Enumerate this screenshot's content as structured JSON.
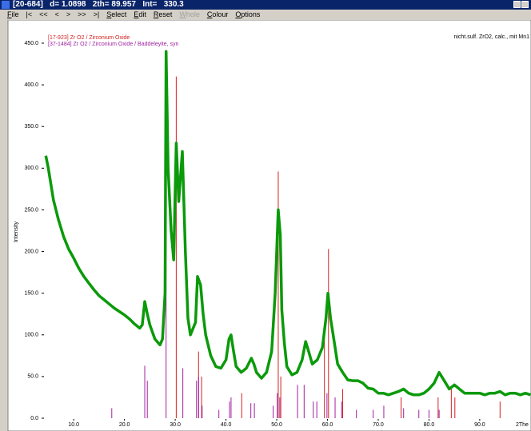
{
  "window": {
    "title": "[20-684]   d= 1.0898   2th= 89.957   Int=   330.3",
    "menu": [
      {
        "label": "File"
      },
      {
        "label": "|<"
      },
      {
        "label": "<<"
      },
      {
        "label": "<"
      },
      {
        "label": ">"
      },
      {
        "label": ">>"
      },
      {
        "label": ">|"
      },
      {
        "label": "Select"
      },
      {
        "label": "Edit"
      },
      {
        "label": "Reset"
      },
      {
        "label": "Whole",
        "enabled": false
      },
      {
        "label": "Colour"
      },
      {
        "label": "Options"
      }
    ]
  },
  "chart_data": {
    "type": "line",
    "sample": "nicht.sulf. ZrO2, calc., mit Mn1",
    "ylabel": "Intensity",
    "xlabel": "2The",
    "xlim": [
      4.3,
      100.1
    ],
    "ylim": [
      0,
      473
    ],
    "xticks": [
      {
        "value": 10,
        "label": "10.0"
      },
      {
        "value": 20,
        "label": "20.0"
      },
      {
        "value": 30,
        "label": "30.0"
      },
      {
        "value": 40,
        "label": "40.0"
      },
      {
        "value": 50,
        "label": "50.0"
      },
      {
        "value": 60,
        "label": "60.0"
      },
      {
        "value": 70,
        "label": "70.0"
      },
      {
        "value": 80,
        "label": "80.0"
      },
      {
        "value": 90,
        "label": "90.0"
      }
    ],
    "yticks": [
      {
        "value": 0,
        "label": "0.0"
      },
      {
        "value": 50,
        "label": "50.0"
      },
      {
        "value": 100,
        "label": "100.0"
      },
      {
        "value": 150,
        "label": "150.0"
      },
      {
        "value": 200,
        "label": "200.0"
      },
      {
        "value": 250,
        "label": "250.0"
      },
      {
        "value": 300,
        "label": "300.0"
      },
      {
        "value": 350,
        "label": "350.0"
      },
      {
        "value": 400,
        "label": "400.0"
      },
      {
        "value": 450,
        "label": "450.0"
      }
    ],
    "color": "#0a9a0a",
    "x": [
      4.5,
      5,
      6,
      7,
      8,
      9,
      10,
      11,
      12,
      13,
      14,
      15,
      16,
      17,
      18,
      19,
      20,
      21,
      22,
      23,
      23.5,
      24,
      24.5,
      25,
      26,
      27,
      27.5,
      28,
      28.2,
      28.6,
      29.2,
      29.7,
      30.2,
      30.7,
      31.4,
      32,
      32.5,
      33,
      34,
      34.4,
      35,
      35.5,
      36,
      37,
      38,
      39,
      40,
      40.6,
      41,
      41.5,
      42,
      43,
      44,
      45,
      45.5,
      46,
      47,
      48,
      49,
      49.7,
      50.3,
      50.7,
      51,
      51.5,
      52,
      53,
      54,
      55,
      55.7,
      56.3,
      57,
      58,
      59,
      59.7,
      60.1,
      60.6,
      61,
      62,
      63,
      64,
      65,
      66,
      67,
      68,
      69,
      70,
      71,
      72,
      73,
      74,
      75,
      76,
      77,
      78,
      79,
      80,
      81,
      82,
      83,
      84,
      85,
      86,
      87,
      88,
      89,
      90,
      91,
      92,
      93,
      94,
      95,
      96,
      97,
      98,
      99,
      100
    ],
    "values": [
      315,
      300,
      262,
      238,
      218,
      203,
      192,
      180,
      170,
      162,
      154,
      147,
      142,
      137,
      132,
      128,
      124,
      119,
      113,
      108,
      112,
      140,
      125,
      112,
      95,
      88,
      95,
      150,
      440,
      300,
      225,
      190,
      330,
      260,
      320,
      200,
      120,
      100,
      115,
      170,
      160,
      125,
      100,
      75,
      62,
      60,
      70,
      95,
      100,
      80,
      62,
      55,
      60,
      72,
      65,
      55,
      48,
      55,
      80,
      150,
      250,
      220,
      130,
      90,
      62,
      52,
      55,
      70,
      92,
      80,
      65,
      70,
      85,
      120,
      150,
      120,
      105,
      65,
      55,
      46,
      45,
      45,
      42,
      36,
      35,
      30,
      30,
      28,
      30,
      32,
      35,
      30,
      28,
      28,
      30,
      35,
      42,
      55,
      45,
      35,
      40,
      35,
      30,
      30,
      30,
      30,
      28,
      30,
      30,
      32,
      28,
      30,
      30,
      28,
      30,
      28
    ],
    "references": [
      {
        "name": "[17-923]  Zr O2 / Zirconium Oxide",
        "color": "#d42020",
        "positions": [
          30.2,
          34.6,
          35.2,
          43.1,
          50.3,
          50.8,
          59.4,
          60.2,
          63.0,
          74.5,
          81.8,
          84.4,
          85.1,
          94.0
        ],
        "intensities": [
          410,
          80,
          50,
          30,
          296,
          50,
          110,
          203,
          35,
          25,
          25,
          35,
          25,
          20
        ]
      },
      {
        "name": "[37-1484]  Zr O2 / Zirconium Oxide / Baddeleyite, syn",
        "color": "#a020a0",
        "positions": [
          17.5,
          24.0,
          24.5,
          28.2,
          31.5,
          34.2,
          34.6,
          35.3,
          38.6,
          40.7,
          41.0,
          44.9,
          45.6,
          49.3,
          50.1,
          50.6,
          54.1,
          55.4,
          57.2,
          57.9,
          59.9,
          61.5,
          62.8,
          65.7,
          69.0,
          71.1,
          75.0,
          78.0,
          80.0,
          82.0
        ],
        "intensities": [
          12,
          63,
          45,
          440,
          60,
          45,
          50,
          15,
          10,
          20,
          25,
          18,
          18,
          15,
          30,
          25,
          40,
          40,
          20,
          20,
          30,
          25,
          20,
          10,
          10,
          15,
          12,
          10,
          10,
          10
        ]
      }
    ]
  }
}
